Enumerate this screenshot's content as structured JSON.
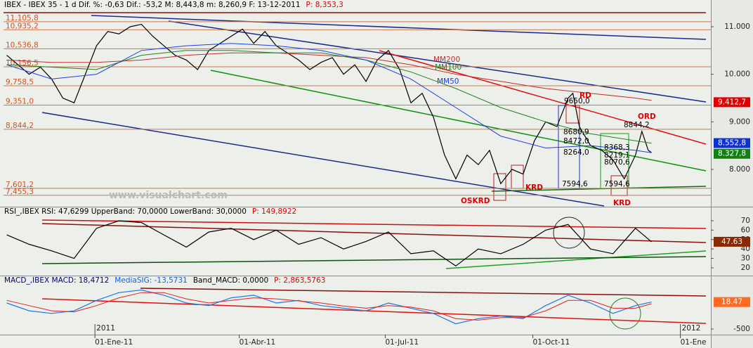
{
  "chart_data": [
    {
      "type": "line",
      "header": [
        {
          "text": "IBEX - IBEX 35 - 1 d Dif. %: -0,63 Dif.: -53,2 M: 8,443,8 m: 8,260,9 F: 13-12-2011",
          "color": "#000000"
        },
        {
          "text": "P: 8,353,3",
          "color": "#e00000"
        }
      ],
      "xlim": [
        -57,
        384
      ],
      "xticks": [
        {
          "value": 0,
          "label": "01-Ene-11"
        },
        {
          "value": 90,
          "label": "01-Abr-11"
        },
        {
          "value": 181,
          "label": "01-Jul-11"
        },
        {
          "value": 273,
          "label": "01-Oct-11"
        },
        {
          "value": 365,
          "label": "01-Ene"
        }
      ],
      "year_labels": [
        {
          "value": 0,
          "label": "2011"
        },
        {
          "value": 365,
          "label": "2012"
        }
      ],
      "ylim": [
        7230,
        11355
      ],
      "yticks": [
        {
          "value": 8000,
          "label": "8.000"
        },
        {
          "value": 9000,
          "label": "9.000"
        },
        {
          "value": 10000,
          "label": "10.000"
        },
        {
          "value": 11000,
          "label": "11.000"
        }
      ],
      "x": [
        -55,
        -48,
        -41,
        -34,
        -27,
        -20,
        -13,
        -6,
        1,
        8,
        15,
        22,
        29,
        36,
        43,
        50,
        57,
        64,
        71,
        78,
        85,
        92,
        99,
        106,
        113,
        120,
        127,
        134,
        141,
        148,
        155,
        162,
        169,
        176,
        183,
        190,
        197,
        204,
        211,
        218,
        225,
        232,
        239,
        246,
        253,
        260,
        267,
        274,
        281,
        288,
        295,
        298,
        302,
        309,
        316,
        323,
        330,
        337,
        341,
        345,
        347
      ],
      "series": [
        {
          "color": "#000000",
          "values": [
            10400,
            10200,
            10000,
            10150,
            9900,
            9500,
            9400,
            10000,
            10600,
            10900,
            10850,
            11000,
            11050,
            10800,
            10600,
            10400,
            10300,
            10100,
            10500,
            10650,
            10800,
            10950,
            10650,
            10900,
            10600,
            10450,
            10300,
            10100,
            10250,
            10350,
            10000,
            10200,
            9850,
            10300,
            10500,
            10100,
            9400,
            9600,
            9100,
            8300,
            7800,
            8300,
            8100,
            8400,
            7700,
            8000,
            7900,
            8600,
            9000,
            8900,
            9500,
            9600,
            8900,
            8500,
            8400,
            8200,
            7800,
            8300,
            8800,
            8400,
            8353
          ]
        },
        {
          "name": "MM200",
          "color": "#c03030",
          "x": [
            -55,
            -27,
            1,
            29,
            57,
            85,
            113,
            141,
            169,
            197,
            225,
            253,
            281,
            309,
            337,
            347
          ],
          "values": [
            10300,
            10250,
            10250,
            10300,
            10400,
            10450,
            10450,
            10400,
            10350,
            10200,
            10000,
            9850,
            9700,
            9600,
            9500,
            9450
          ]
        },
        {
          "name": "MM100",
          "color": "#208020",
          "x": [
            -55,
            -27,
            1,
            29,
            57,
            85,
            113,
            141,
            169,
            197,
            225,
            253,
            281,
            309,
            337,
            347
          ],
          "values": [
            10200,
            10150,
            10100,
            10400,
            10500,
            10500,
            10450,
            10450,
            10300,
            10050,
            9700,
            9300,
            9000,
            8750,
            8600,
            8550
          ]
        },
        {
          "name": "MM50",
          "color": "#2040e0",
          "x": [
            -55,
            -27,
            1,
            29,
            57,
            85,
            113,
            141,
            169,
            197,
            225,
            253,
            281,
            309,
            337,
            347
          ],
          "values": [
            10200,
            9900,
            10000,
            10500,
            10600,
            10650,
            10600,
            10500,
            10300,
            9900,
            9300,
            8700,
            8450,
            8500,
            8400,
            8350
          ]
        }
      ],
      "levels": [
        {
          "value": 11105.8,
          "label": "11,105,8"
        },
        {
          "value": 10935.2,
          "label": "10,935,2"
        },
        {
          "value": 10536.8,
          "label": "10,536,8"
        },
        {
          "value": 10156.5,
          "label": "10,156,5"
        },
        {
          "value": 9758.5,
          "label": "9,758,5"
        },
        {
          "value": 9351.0,
          "label": "9,351,0"
        },
        {
          "value": 8844.2,
          "label": "8,844,2"
        },
        {
          "value": 7601.2,
          "label": "7,601,2"
        },
        {
          "value": 7455.3,
          "label": "7,455,3"
        }
      ],
      "value_boxes": [
        {
          "value": 9412.7,
          "label": "9.412,7",
          "color": "#e00000"
        },
        {
          "value": 8552.8,
          "label": "8.552,8",
          "color": "#1030d0"
        },
        {
          "value": 8327.8,
          "label": "8.327,8",
          "color": "#108010"
        }
      ],
      "annotations": [
        {
          "text": "RD",
          "color": "#e00000"
        },
        {
          "text": "ORD",
          "color": "#e00000"
        },
        {
          "text": "KRD",
          "color": "#e00000"
        },
        {
          "text": "KRD",
          "color": "#e00000"
        },
        {
          "text": "OSKRD",
          "color": "#e00000"
        },
        {
          "text": "9650,0",
          "color": "#000000"
        },
        {
          "text": "8844,2",
          "color": "#000000"
        },
        {
          "text": "8680,9",
          "color": "#000000"
        },
        {
          "text": "8472,0",
          "color": "#000000"
        },
        {
          "text": "8264,0",
          "color": "#000000"
        },
        {
          "text": "8368,3",
          "color": "#000000"
        },
        {
          "text": "8219,1",
          "color": "#000000"
        },
        {
          "text": "8070,6",
          "color": "#000000"
        },
        {
          "text": "7594,6",
          "color": "#000000"
        },
        {
          "text": "7594,6",
          "color": "#000000"
        },
        {
          "text": "www.visualchart.com",
          "color": "#b8bcb8"
        }
      ]
    },
    {
      "type": "line",
      "header": [
        {
          "text": "RSI_,IBEX RSI: 47,6299 UpperBand: 70,0000 LowerBand: 30,0000",
          "color": "#000000"
        },
        {
          "text": "P: 149,8922",
          "color": "#e00000"
        }
      ],
      "ylim": [
        12.5,
        83.4
      ],
      "yticks": [
        20,
        30,
        40,
        50,
        60,
        70
      ],
      "x": [
        -55,
        -41,
        -27,
        -13,
        1,
        15,
        29,
        43,
        57,
        71,
        85,
        99,
        113,
        127,
        141,
        155,
        169,
        183,
        197,
        211,
        225,
        239,
        253,
        267,
        281,
        295,
        309,
        323,
        337,
        347
      ],
      "series": [
        {
          "color": "#000000",
          "values": [
            55,
            45,
            38,
            30,
            62,
            70,
            68,
            55,
            42,
            58,
            62,
            50,
            60,
            45,
            52,
            40,
            48,
            58,
            35,
            38,
            22,
            40,
            35,
            45,
            60,
            66,
            40,
            35,
            62,
            47.63
          ]
        }
      ],
      "value_boxes": [
        {
          "value": 47.63,
          "label": "47.63",
          "color": "#8b2a00"
        }
      ]
    },
    {
      "type": "line",
      "header": [
        {
          "text": "MACD_,IBEX MACD: 18,4712",
          "color": "#000080"
        },
        {
          "text": "MediaSIG: -13,5731",
          "color": "#1060e0"
        },
        {
          "text": "Band_MACD: 0,0000",
          "color": "#000000"
        },
        {
          "text": "P: 2,863,5763",
          "color": "#e00000"
        }
      ],
      "ylim": [
        -608,
        500
      ],
      "yticks": [
        -500
      ],
      "x": [
        -55,
        -41,
        -27,
        -13,
        1,
        15,
        29,
        43,
        57,
        71,
        85,
        99,
        113,
        127,
        141,
        155,
        169,
        183,
        197,
        211,
        225,
        239,
        253,
        267,
        281,
        295,
        309,
        323,
        337,
        347
      ],
      "series": [
        {
          "color": "#1e78e6",
          "values": [
            0,
            -150,
            -200,
            -150,
            50,
            200,
            250,
            150,
            0,
            -50,
            100,
            150,
            0,
            50,
            -50,
            -100,
            -150,
            0,
            -100,
            -200,
            -400,
            -300,
            -250,
            -300,
            -50,
            150,
            0,
            -200,
            -50,
            18.47
          ]
        },
        {
          "color": "#e02020",
          "values": [
            50,
            -50,
            -150,
            -170,
            -50,
            100,
            200,
            200,
            80,
            0,
            50,
            100,
            80,
            40,
            0,
            -60,
            -100,
            -50,
            -80,
            -150,
            -300,
            -330,
            -280,
            -280,
            -150,
            50,
            50,
            -100,
            -100,
            -13.57
          ]
        }
      ],
      "value_boxes": [
        {
          "value": 18.47,
          "label": "18.47",
          "color": "#ff6a20"
        }
      ]
    }
  ]
}
